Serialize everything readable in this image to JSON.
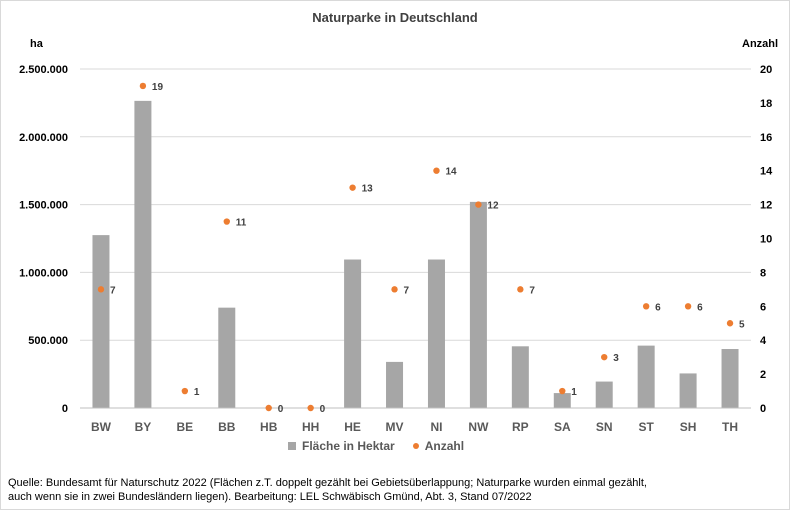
{
  "chart_data": {
    "type": "bar",
    "title": "Naturparke in Deutschland",
    "y_left_label": "ha",
    "y_right_label": "Anzahl",
    "categories": [
      "BW",
      "BY",
      "BE",
      "BB",
      "HB",
      "HH",
      "HE",
      "MV",
      "NI",
      "NW",
      "RP",
      "SA",
      "SN",
      "ST",
      "SH",
      "TH"
    ],
    "series": [
      {
        "name": "Fläche in Hektar",
        "kind": "bar",
        "axis": "left",
        "color": "#a6a6a6",
        "values": [
          1275000,
          2265000,
          0,
          740000,
          0,
          0,
          1095000,
          340000,
          1095000,
          1520000,
          455000,
          110000,
          195000,
          460000,
          255000,
          435000
        ]
      },
      {
        "name": "Anzahl",
        "kind": "scatter",
        "axis": "right",
        "color": "#ed7d31",
        "values": [
          7,
          19,
          1,
          11,
          0,
          0,
          13,
          7,
          14,
          12,
          7,
          1,
          3,
          6,
          6,
          5
        ]
      }
    ],
    "y_left_ticks": [
      "0",
      "500.000",
      "1.000.000",
      "1.500.000",
      "2.000.000",
      "2.500.000"
    ],
    "y_left_lim": [
      0,
      2500000
    ],
    "y_right_ticks": [
      "0",
      "2",
      "4",
      "6",
      "8",
      "10",
      "12",
      "14",
      "16",
      "18",
      "20"
    ],
    "y_right_lim": [
      0,
      20
    ],
    "grid": true,
    "legend_position": "bottom"
  },
  "source_lines": [
    "Quelle: Bundesamt für Naturschutz 2022 (Flächen z.T. doppelt gezählt bei Gebietsüberlappung; Naturparke wurden einmal gezählt,",
    "auch wenn sie in zwei Bundesländern liegen). Bearbeitung: LEL Schwäbisch Gmünd, Abt. 3, Stand 07/2022"
  ]
}
